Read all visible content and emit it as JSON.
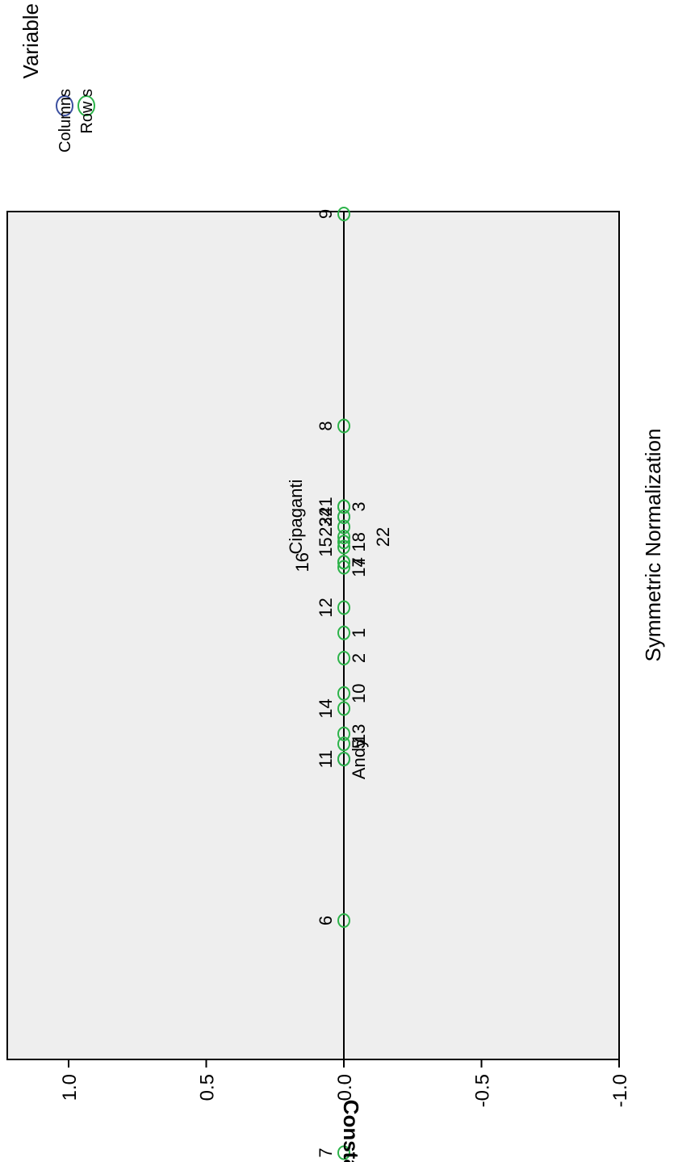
{
  "chart_data": {
    "type": "scatter",
    "title": "Symmetric Normalization",
    "xlabel": "",
    "ylabel": "Constant",
    "ylim": [
      -1.0,
      1.0
    ],
    "yticks": [
      1.0,
      0.5,
      0.0,
      -0.5,
      -1.0
    ],
    "ytick_labels": [
      "1.0",
      "0.5",
      "0.0",
      "-0.5",
      "-1.0"
    ],
    "grid": false,
    "reference_line_y": 0.0,
    "legend": {
      "title": "Variable",
      "placement": "top-right",
      "entries": [
        {
          "label": "Columns",
          "color": "#3c50a0"
        },
        {
          "label": "Row s",
          "color": "#2db34a"
        }
      ]
    },
    "colors": {
      "plot_background": "#eeeeee",
      "columns": "#3c50a0",
      "rows": "#2db34a"
    },
    "xlim": [
      -1.0,
      1.0
    ],
    "series": [
      {
        "name": "Columns",
        "points": [
          {
            "label": "Andy",
            "x": -0.03,
            "y": 0.0
          },
          {
            "label": "Cipaganti",
            "x": 0.21,
            "y": 0.0
          }
        ]
      },
      {
        "name": "Row s",
        "points": [
          {
            "label": "7",
            "x": -0.42,
            "y": 0.0
          },
          {
            "label": "6",
            "x": -0.19,
            "y": 0.0
          },
          {
            "label": "11",
            "x": -0.03,
            "y": 0.0
          },
          {
            "label": "5",
            "x": -0.015,
            "y": 0.0
          },
          {
            "label": "13",
            "x": -0.005,
            "y": 0.0
          },
          {
            "label": "14",
            "x": 0.02,
            "y": 0.0
          },
          {
            "label": "10",
            "x": 0.035,
            "y": 0.0
          },
          {
            "label": "2",
            "x": 0.07,
            "y": 0.0
          },
          {
            "label": "1",
            "x": 0.095,
            "y": 0.0
          },
          {
            "label": "12",
            "x": 0.12,
            "y": 0.0
          },
          {
            "label": "17",
            "x": 0.16,
            "y": 0.0
          },
          {
            "label": "16",
            "x": 0.165,
            "y": 0.0
          },
          {
            "label": "4",
            "x": 0.165,
            "y": 0.0
          },
          {
            "label": "15",
            "x": 0.18,
            "y": 0.0
          },
          {
            "label": "18",
            "x": 0.185,
            "y": 0.0
          },
          {
            "label": "22",
            "x": 0.19,
            "y": 0.0
          },
          {
            "label": "23",
            "x": 0.2,
            "y": 0.0
          },
          {
            "label": "24",
            "x": 0.21,
            "y": 0.0
          },
          {
            "label": "3",
            "x": 0.22,
            "y": 0.0
          },
          {
            "label": "21",
            "x": 0.22,
            "y": 0.0
          },
          {
            "label": "8",
            "x": 0.3,
            "y": 0.0
          },
          {
            "label": "9",
            "x": 0.51,
            "y": 0.0
          }
        ]
      }
    ]
  }
}
